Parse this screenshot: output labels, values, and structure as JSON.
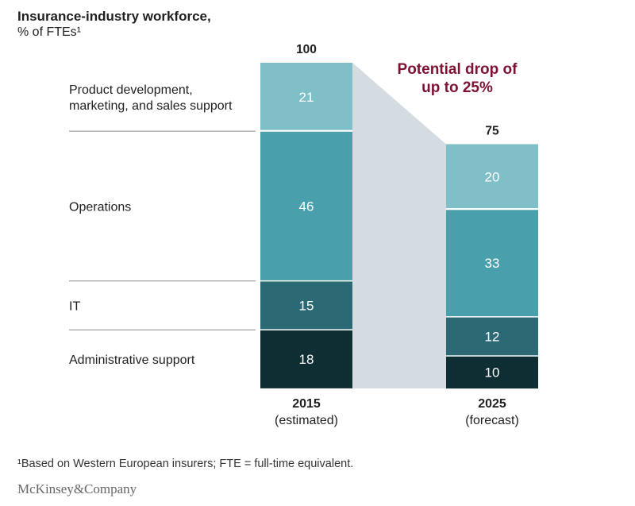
{
  "chart_data": {
    "type": "bar",
    "stacked": true,
    "title": "Insurance-industry workforce,",
    "subtitle": "% of FTEs¹",
    "categories": [
      {
        "year": "2015",
        "note": "(estimated)"
      },
      {
        "year": "2025",
        "note": "(forecast)"
      }
    ],
    "totals": [
      "100",
      "75"
    ],
    "series": [
      {
        "name": "Administrative support",
        "values": [
          18,
          10
        ],
        "color": "#0e2e33"
      },
      {
        "name": "IT",
        "values": [
          15,
          12
        ],
        "color": "#2b6a75"
      },
      {
        "name": "Operations",
        "values": [
          46,
          33
        ],
        "color": "#4a9fac"
      },
      {
        "name": "Product development, marketing, and sales support",
        "name_lines": [
          "Product development,",
          "marketing, and sales support"
        ],
        "values": [
          21,
          20
        ],
        "color": "#7fbfc8"
      }
    ],
    "annotation": {
      "lines": [
        "Potential drop of",
        "up to 25%"
      ],
      "color": "#7d1233",
      "band_color": "#d4dbe1"
    },
    "ylim": [
      0,
      100
    ],
    "grid": false,
    "legend": "left"
  },
  "footnote": "¹Based on Western European insurers; FTE = full-time equivalent.",
  "brand": "McKinsey&Company"
}
